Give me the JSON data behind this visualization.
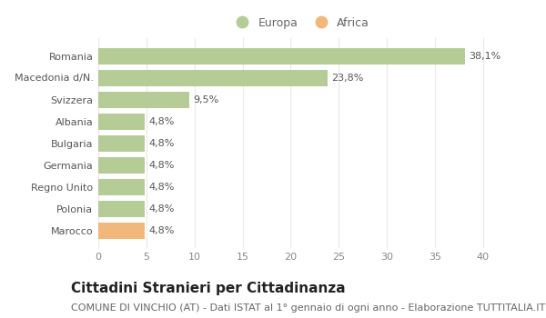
{
  "categories": [
    "Marocco",
    "Polonia",
    "Regno Unito",
    "Germania",
    "Bulgaria",
    "Albania",
    "Svizzera",
    "Macedonia d/N.",
    "Romania"
  ],
  "values": [
    4.8,
    4.8,
    4.8,
    4.8,
    4.8,
    4.8,
    9.5,
    23.8,
    38.1
  ],
  "labels": [
    "4,8%",
    "4,8%",
    "4,8%",
    "4,8%",
    "4,8%",
    "4,8%",
    "9,5%",
    "23,8%",
    "38,1%"
  ],
  "colors": [
    "#f0b87a",
    "#b5cc96",
    "#b5cc96",
    "#b5cc96",
    "#b5cc96",
    "#b5cc96",
    "#b5cc96",
    "#b5cc96",
    "#b5cc96"
  ],
  "europa_color": "#b5cc96",
  "africa_color": "#f0b87a",
  "background_color": "#ffffff",
  "grid_color": "#e8e8e8",
  "xlim": [
    0,
    42
  ],
  "xticks": [
    0,
    5,
    10,
    15,
    20,
    25,
    30,
    35,
    40
  ],
  "title": "Cittadini Stranieri per Cittadinanza",
  "subtitle": "COMUNE DI VINCHIO (AT) - Dati ISTAT al 1° gennaio di ogni anno - Elaborazione TUTTITALIA.IT",
  "legend_europa": "Europa",
  "legend_africa": "Africa",
  "title_fontsize": 11,
  "subtitle_fontsize": 8,
  "label_fontsize": 8,
  "tick_fontsize": 8,
  "legend_fontsize": 9,
  "bar_height": 0.75,
  "label_color": "#555555",
  "tick_color": "#888888",
  "ylabel_color": "#555555"
}
